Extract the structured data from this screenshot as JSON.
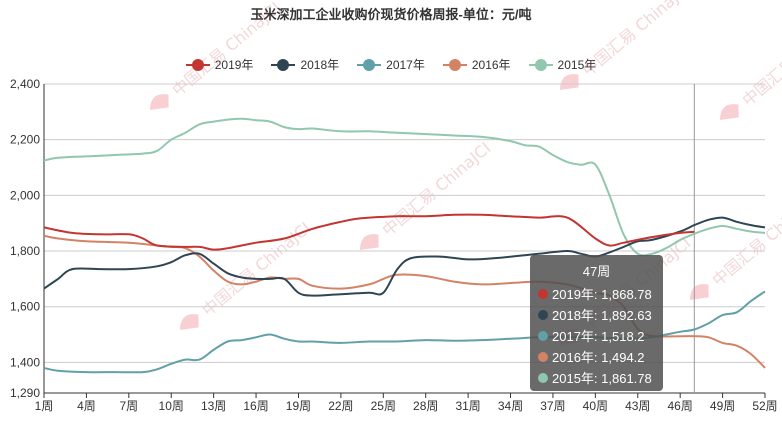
{
  "chart_data": {
    "type": "line",
    "title": "玉米深加工企业收购价现货价格周报-单位：元/吨",
    "ylim": [
      1290,
      2400
    ],
    "y_ticks": [
      "1,290",
      "1,400",
      "1,600",
      "1,800",
      "2,000",
      "2,200",
      "2,400"
    ],
    "x_ticks": [
      "1周",
      "4周",
      "7周",
      "10周",
      "13周",
      "16周",
      "19周",
      "22周",
      "25周",
      "28周",
      "31周",
      "34周",
      "37周",
      "40周",
      "43周",
      "46周",
      "49周",
      "52周"
    ],
    "legend_position": "top-center",
    "grid": true,
    "series": [
      {
        "name": "2019年",
        "color": "#c23531",
        "x": [
          1,
          3,
          5,
          7,
          8,
          9,
          11,
          12,
          13,
          14,
          16,
          18,
          20,
          22,
          23,
          24,
          26,
          28,
          30,
          32,
          34,
          36,
          38,
          40,
          41,
          42,
          44,
          46,
          47
        ],
        "values": [
          1885,
          1865,
          1860,
          1860,
          1845,
          1820,
          1815,
          1815,
          1805,
          1810,
          1830,
          1845,
          1880,
          1905,
          1915,
          1920,
          1925,
          1925,
          1930,
          1930,
          1925,
          1920,
          1920,
          1845,
          1820,
          1830,
          1850,
          1865,
          1869
        ]
      },
      {
        "name": "2018年",
        "color": "#2f4554",
        "x": [
          1,
          2,
          3,
          5,
          7,
          9,
          10,
          11,
          12,
          13,
          14,
          15,
          16,
          17,
          18,
          19,
          20,
          22,
          24,
          25,
          26,
          27,
          29,
          31,
          33,
          35,
          36,
          38,
          39,
          40,
          41,
          42,
          43,
          44,
          46,
          47,
          48,
          49,
          50,
          51,
          52
        ],
        "values": [
          1665,
          1700,
          1735,
          1735,
          1735,
          1745,
          1760,
          1785,
          1790,
          1755,
          1720,
          1705,
          1700,
          1700,
          1700,
          1650,
          1640,
          1645,
          1650,
          1650,
          1735,
          1775,
          1780,
          1770,
          1775,
          1785,
          1790,
          1800,
          1790,
          1780,
          1795,
          1815,
          1835,
          1840,
          1870,
          1893,
          1912,
          1920,
          1905,
          1893,
          1885
        ]
      },
      {
        "name": "2017年",
        "color": "#61a0a8",
        "x": [
          1,
          2,
          4,
          6,
          8,
          9,
          10,
          11,
          12,
          13,
          14,
          15,
          16,
          17,
          18,
          19,
          20,
          22,
          24,
          26,
          28,
          30,
          32,
          34,
          36,
          38,
          40,
          42,
          44,
          45,
          46,
          47,
          48,
          49,
          50,
          51,
          52
        ],
        "values": [
          1380,
          1370,
          1365,
          1365,
          1365,
          1375,
          1395,
          1410,
          1410,
          1445,
          1475,
          1480,
          1490,
          1500,
          1485,
          1475,
          1475,
          1470,
          1475,
          1475,
          1480,
          1478,
          1480,
          1485,
          1490,
          1490,
          1490,
          1485,
          1490,
          1500,
          1510,
          1518,
          1540,
          1570,
          1580,
          1620,
          1655
        ]
      },
      {
        "name": "2016年",
        "color": "#d48265",
        "x": [
          1,
          2,
          4,
          7,
          9,
          10,
          11,
          12,
          13,
          14,
          15,
          16,
          17,
          18,
          19,
          20,
          22,
          24,
          25,
          26,
          28,
          30,
          32,
          34,
          36,
          38,
          40,
          41,
          42,
          43,
          44,
          46,
          47,
          48,
          49,
          50,
          51,
          52
        ],
        "values": [
          1855,
          1845,
          1835,
          1830,
          1820,
          1815,
          1810,
          1780,
          1730,
          1690,
          1680,
          1690,
          1705,
          1700,
          1700,
          1675,
          1665,
          1680,
          1700,
          1715,
          1710,
          1690,
          1680,
          1685,
          1690,
          1680,
          1650,
          1640,
          1600,
          1520,
          1495,
          1494,
          1494,
          1490,
          1470,
          1460,
          1430,
          1380
        ]
      },
      {
        "name": "2015年",
        "color": "#91c7ae",
        "x": [
          1,
          2,
          4,
          6,
          8,
          9,
          10,
          11,
          12,
          13,
          14,
          15,
          16,
          17,
          18,
          19,
          20,
          22,
          24,
          26,
          28,
          30,
          32,
          34,
          35,
          36,
          37,
          38,
          39,
          40,
          41,
          42,
          43,
          44,
          45,
          46,
          47,
          48,
          49,
          50,
          51,
          52
        ],
        "values": [
          2125,
          2135,
          2140,
          2145,
          2150,
          2160,
          2200,
          2225,
          2255,
          2265,
          2272,
          2275,
          2270,
          2265,
          2245,
          2238,
          2240,
          2230,
          2230,
          2225,
          2220,
          2215,
          2210,
          2195,
          2180,
          2175,
          2145,
          2120,
          2110,
          2110,
          2000,
          1860,
          1790,
          1790,
          1810,
          1840,
          1862,
          1880,
          1890,
          1880,
          1870,
          1865
        ]
      }
    ],
    "tooltip": {
      "title": "47周",
      "rows": [
        "2019年: 1,868.78",
        "2018年: 1,892.63",
        "2017年: 1,518.2",
        "2016年: 1,494.2",
        "2015年: 1,861.78"
      ]
    }
  },
  "watermark": "中国汇易 ChinaJCI"
}
